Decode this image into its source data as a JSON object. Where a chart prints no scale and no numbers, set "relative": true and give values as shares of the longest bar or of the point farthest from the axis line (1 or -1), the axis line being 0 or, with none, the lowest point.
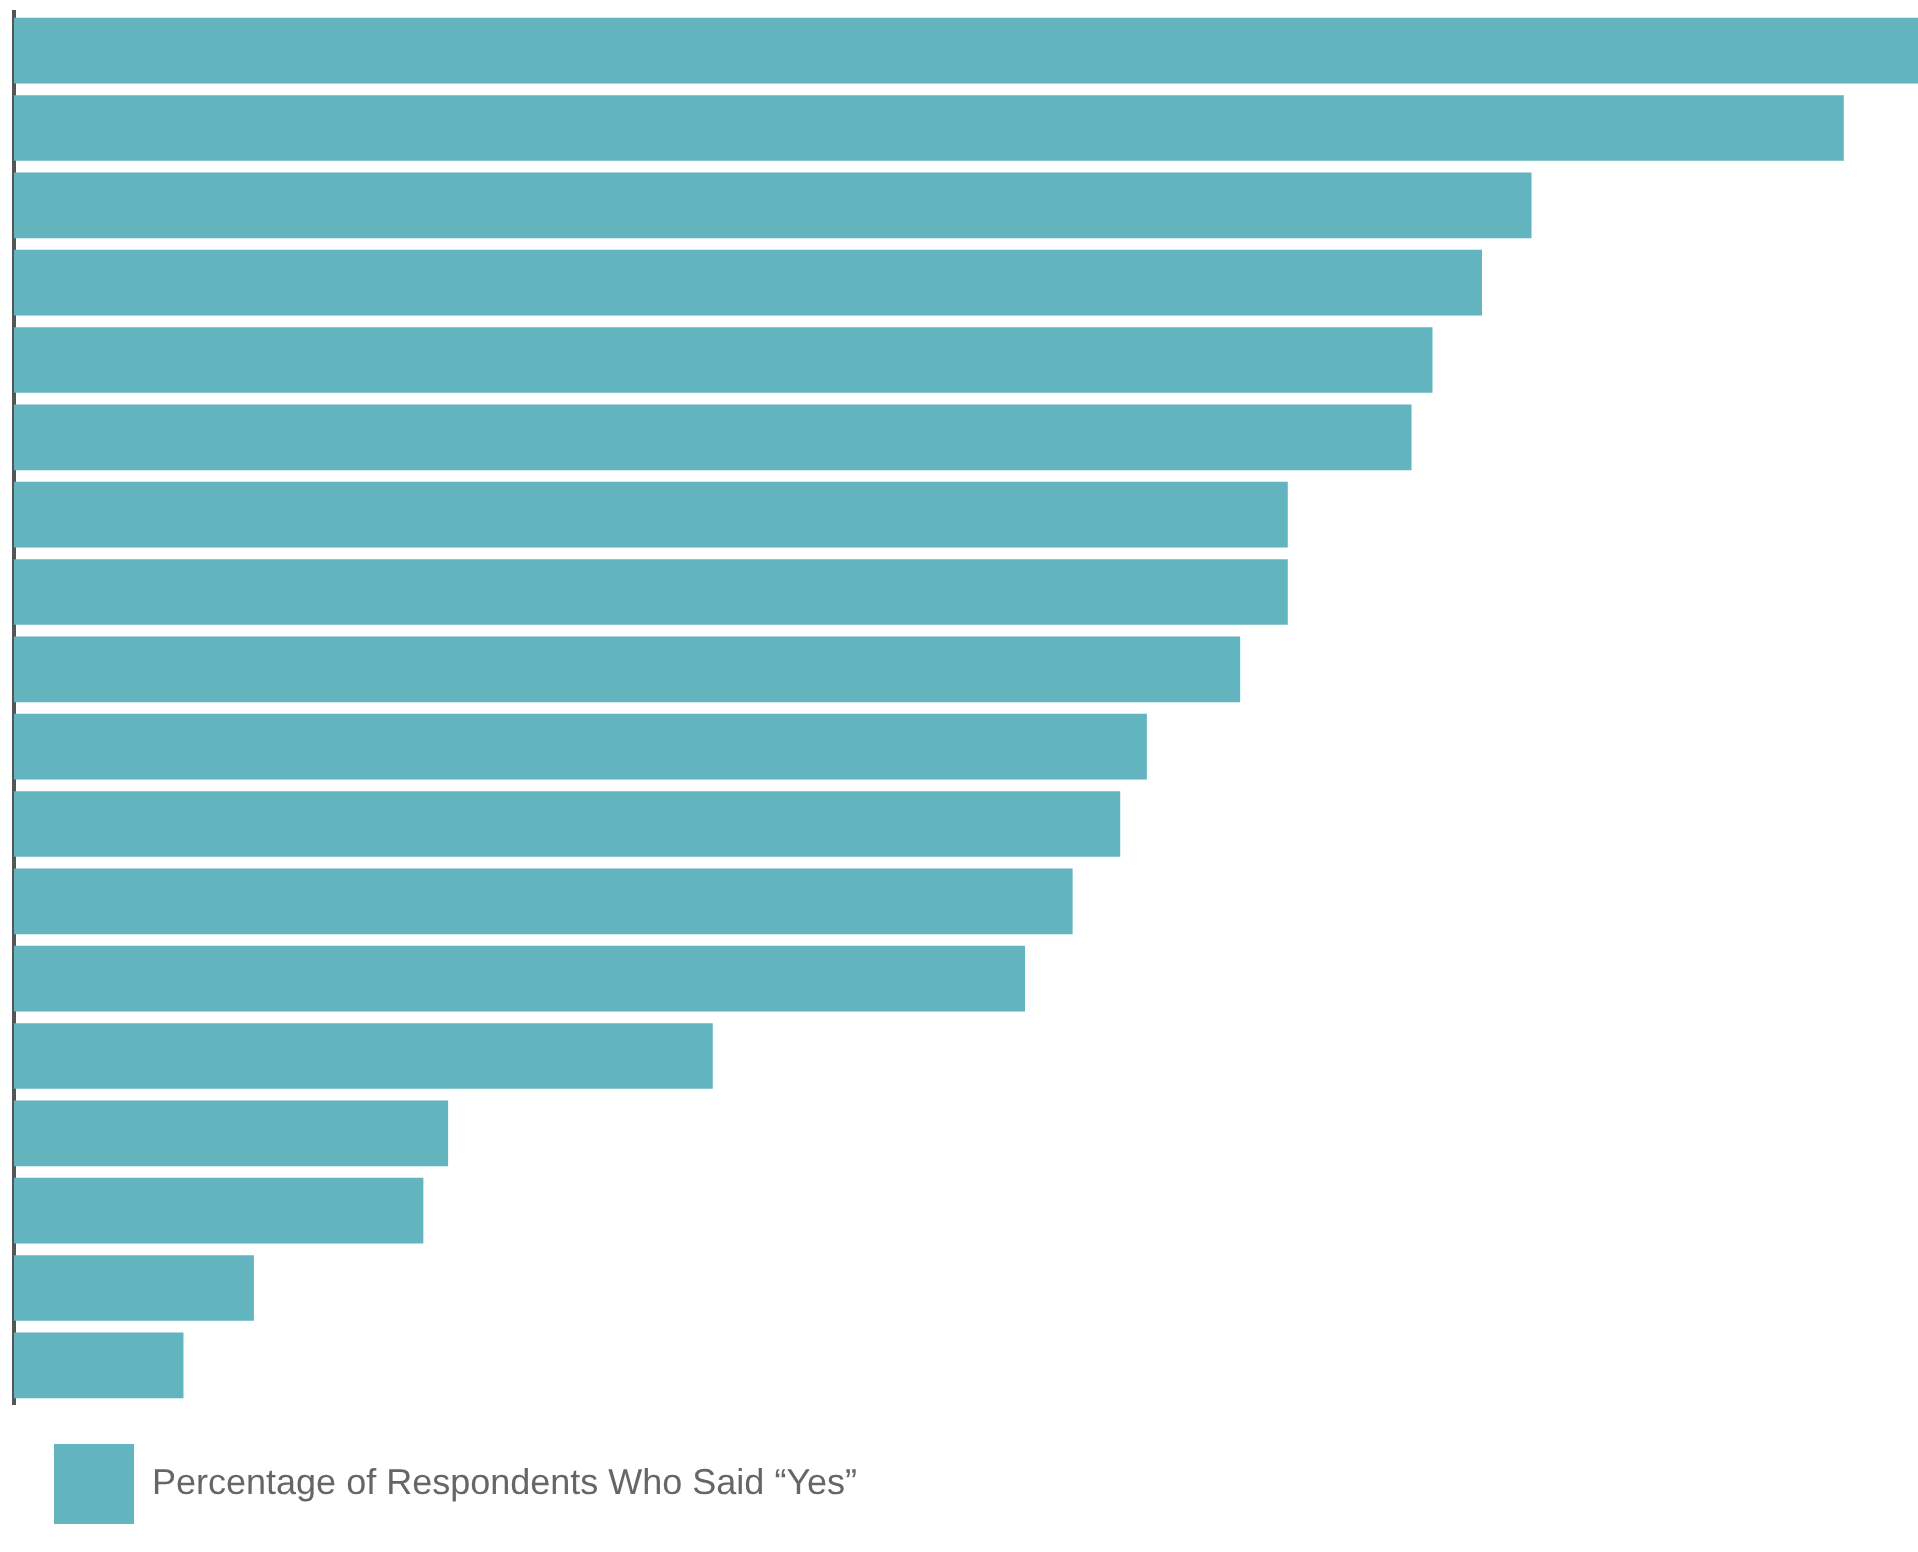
{
  "chart_data": {
    "type": "bar",
    "orientation": "horizontal",
    "relative": true,
    "legend": "bottom left",
    "categories": [
      null,
      null,
      null,
      null,
      null,
      null,
      null,
      null,
      null,
      null,
      null,
      null,
      null,
      null,
      null,
      null,
      null,
      null
    ],
    "series": [
      {
        "name": "Percentage of Respondents Who Said “Yes”",
        "color": "#62b4bf",
        "values": [
          1,
          0.961,
          0.797,
          0.771,
          0.745,
          0.734,
          0.669,
          0.669,
          0.644,
          0.595,
          0.581,
          0.556,
          0.531,
          0.367,
          0.228,
          0.215,
          0.126,
          0.089
        ]
      }
    ]
  }
}
